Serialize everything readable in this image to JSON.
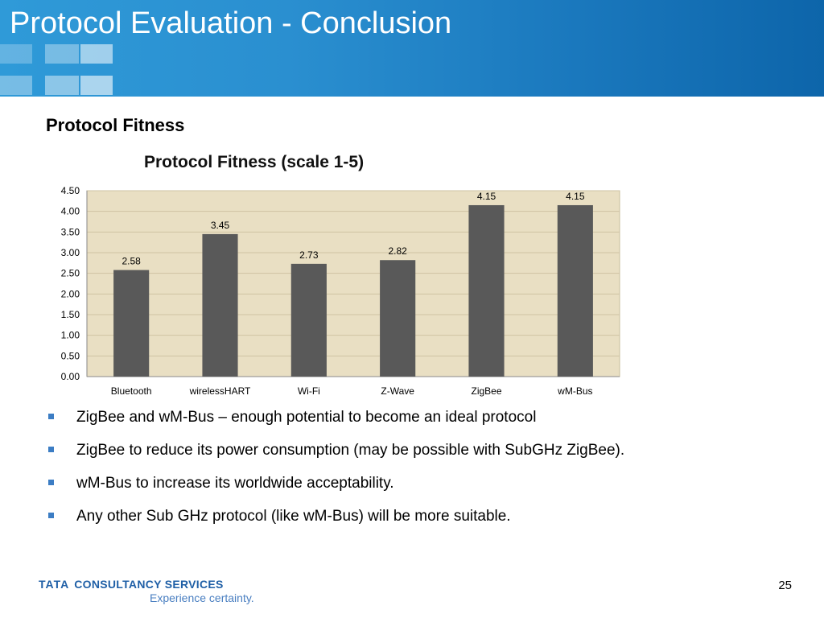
{
  "slide": {
    "title": "Protocol Evaluation - Conclusion",
    "section_title": "Protocol Fitness",
    "page_number": "25"
  },
  "bullets": [
    "ZigBee and wM-Bus – enough potential to become an ideal protocol",
    "ZigBee to reduce its power consumption (may be possible with SubGHz ZigBee).",
    "wM-Bus to increase its worldwide acceptability.",
    "Any other Sub GHz protocol (like wM-Bus) will be more suitable."
  ],
  "footer": {
    "brand_mark": "TATA",
    "brand_name": "CONSULTANCY SERVICES",
    "tagline": "Experience certainty."
  },
  "colors": {
    "header_blue": "#1a78bd",
    "bar_fill": "#595959",
    "plot_background": "#e9dfc3",
    "brand_blue": "#1f5fa6",
    "bullet_blue": "#3c7dc4"
  },
  "chart_data": {
    "type": "bar",
    "title": "Protocol Fitness (scale 1-5)",
    "xlabel": "",
    "ylabel": "",
    "categories": [
      "Bluetooth",
      "wirelessHART",
      "Wi-Fi",
      "Z-Wave",
      "ZigBee",
      "wM-Bus"
    ],
    "values": [
      2.58,
      3.45,
      2.73,
      2.82,
      4.15,
      4.15
    ],
    "value_labels": [
      "2.58",
      "3.45",
      "2.73",
      "2.82",
      "4.15",
      "4.15"
    ],
    "ylim": [
      0,
      4.5
    ],
    "yticks": [
      "0.00",
      "0.50",
      "1.00",
      "1.50",
      "2.00",
      "2.50",
      "3.00",
      "3.50",
      "4.00",
      "4.50"
    ],
    "grid": true,
    "legend": "none"
  }
}
